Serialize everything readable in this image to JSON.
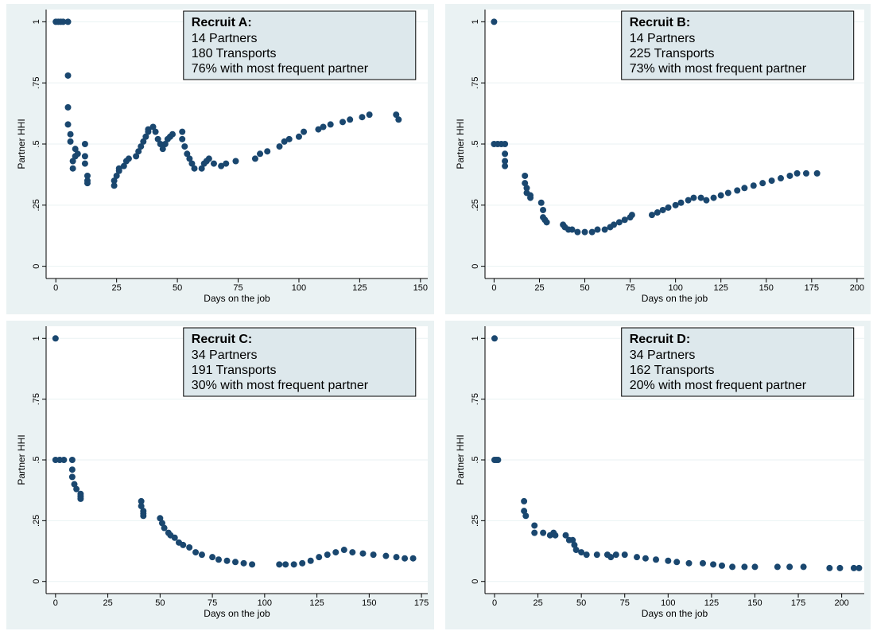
{
  "chart_data": [
    {
      "type": "scatter",
      "color": "#1a476f",
      "xlabel": "Days on the job",
      "ylabel": "Partner HHI",
      "grid": true,
      "annotation": {
        "title": "Recruit A:",
        "lines": [
          "14 Partners",
          "180 Transports",
          "76% with most frequent partner"
        ]
      },
      "xlim": [
        -4,
        153
      ],
      "ylim": [
        -0.05,
        1.05
      ],
      "xticks": [
        0,
        25,
        50,
        75,
        100,
        125,
        150
      ],
      "yticks": [
        0,
        {
          "value": 0.25,
          "label": ".25"
        },
        {
          "value": 0.5,
          "label": ".5"
        },
        {
          "value": 0.75,
          "label": ".75"
        },
        1
      ],
      "x": [
        0,
        1,
        2,
        3,
        5,
        5,
        5,
        5,
        6,
        6,
        7,
        7,
        8,
        8,
        9,
        12,
        12,
        12,
        13,
        13,
        13,
        24,
        24,
        25,
        26,
        26,
        28,
        29,
        30,
        33,
        34,
        35,
        36,
        37,
        38,
        38,
        40,
        41,
        42,
        43,
        44,
        45,
        46,
        47,
        48,
        52,
        52,
        53,
        54,
        55,
        56,
        57,
        60,
        61,
        62,
        63,
        65,
        68,
        70,
        74,
        82,
        84,
        87,
        92,
        94,
        96,
        100,
        102,
        108,
        110,
        113,
        118,
        121,
        126,
        129,
        140,
        141
      ],
      "values": [
        1,
        1,
        1,
        1,
        1,
        0.78,
        0.65,
        0.58,
        0.54,
        0.51,
        0.43,
        0.4,
        0.45,
        0.48,
        0.46,
        0.5,
        0.45,
        0.42,
        0.37,
        0.35,
        0.34,
        0.33,
        0.35,
        0.37,
        0.39,
        0.4,
        0.41,
        0.43,
        0.44,
        0.45,
        0.47,
        0.49,
        0.51,
        0.53,
        0.55,
        0.56,
        0.57,
        0.55,
        0.52,
        0.5,
        0.48,
        0.5,
        0.52,
        0.53,
        0.54,
        0.55,
        0.52,
        0.49,
        0.46,
        0.44,
        0.42,
        0.4,
        0.4,
        0.42,
        0.43,
        0.44,
        0.42,
        0.41,
        0.42,
        0.43,
        0.44,
        0.46,
        0.47,
        0.49,
        0.51,
        0.52,
        0.53,
        0.55,
        0.56,
        0.57,
        0.58,
        0.59,
        0.6,
        0.61,
        0.62,
        0.62,
        0.6
      ]
    },
    {
      "type": "scatter",
      "color": "#1a476f",
      "xlabel": "Days on the job",
      "ylabel": "Partner HHI",
      "grid": true,
      "annotation": {
        "title": "Recruit B:",
        "lines": [
          "14 Partners",
          "225 Transports",
          "73% with most frequent partner"
        ]
      },
      "xlim": [
        -5,
        204
      ],
      "ylim": [
        -0.05,
        1.05
      ],
      "xticks": [
        0,
        25,
        50,
        75,
        100,
        125,
        150,
        175,
        200
      ],
      "yticks": [
        0,
        {
          "value": 0.25,
          "label": ".25"
        },
        {
          "value": 0.5,
          "label": ".5"
        },
        {
          "value": 0.75,
          "label": ".75"
        },
        1
      ],
      "x": [
        0,
        0,
        2,
        4,
        6,
        6,
        6,
        6,
        17,
        17,
        18,
        18,
        20,
        20,
        26,
        27,
        27,
        28,
        29,
        38,
        39,
        41,
        43,
        46,
        50,
        54,
        57,
        61,
        64,
        66,
        69,
        72,
        75,
        76,
        87,
        90,
        93,
        96,
        100,
        103,
        107,
        110,
        114,
        117,
        121,
        125,
        129,
        134,
        138,
        143,
        148,
        153,
        158,
        163,
        167,
        172,
        178
      ],
      "values": [
        1,
        0.5,
        0.5,
        0.5,
        0.5,
        0.46,
        0.43,
        0.41,
        0.37,
        0.34,
        0.32,
        0.3,
        0.29,
        0.28,
        0.26,
        0.23,
        0.2,
        0.19,
        0.18,
        0.17,
        0.16,
        0.15,
        0.15,
        0.14,
        0.14,
        0.14,
        0.15,
        0.15,
        0.16,
        0.17,
        0.18,
        0.19,
        0.2,
        0.21,
        0.21,
        0.22,
        0.23,
        0.24,
        0.25,
        0.26,
        0.27,
        0.28,
        0.28,
        0.27,
        0.28,
        0.29,
        0.3,
        0.31,
        0.32,
        0.33,
        0.34,
        0.35,
        0.36,
        0.37,
        0.38,
        0.38,
        0.38
      ]
    },
    {
      "type": "scatter",
      "color": "#1a476f",
      "xlabel": "Days on the job",
      "ylabel": "Partner HHI",
      "grid": true,
      "annotation": {
        "title": "Recruit C:",
        "lines": [
          "34 Partners",
          "191 Transports",
          "30% with most frequent partner"
        ]
      },
      "xlim": [
        -4.5,
        178
      ],
      "ylim": [
        -0.05,
        1.05
      ],
      "xticks": [
        0,
        25,
        50,
        75,
        100,
        125,
        150,
        175
      ],
      "yticks": [
        0,
        {
          "value": 0.25,
          "label": ".25"
        },
        {
          "value": 0.5,
          "label": ".5"
        },
        {
          "value": 0.75,
          "label": ".75"
        },
        1
      ],
      "x": [
        0,
        0,
        2,
        4,
        8,
        8,
        8,
        9,
        10,
        12,
        12,
        12,
        41,
        41,
        42,
        42,
        42,
        50,
        51,
        52,
        54,
        55,
        57,
        59,
        61,
        64,
        67,
        70,
        75,
        78,
        82,
        86,
        90,
        94,
        107,
        110,
        114,
        118,
        122,
        126,
        130,
        134,
        138,
        142,
        147,
        152,
        158,
        163,
        167,
        171
      ],
      "values": [
        1,
        0.5,
        0.5,
        0.5,
        0.5,
        0.46,
        0.43,
        0.4,
        0.38,
        0.36,
        0.35,
        0.34,
        0.33,
        0.31,
        0.29,
        0.28,
        0.27,
        0.26,
        0.24,
        0.22,
        0.2,
        0.19,
        0.18,
        0.16,
        0.15,
        0.14,
        0.12,
        0.11,
        0.1,
        0.09,
        0.085,
        0.08,
        0.075,
        0.07,
        0.07,
        0.07,
        0.07,
        0.075,
        0.085,
        0.1,
        0.11,
        0.12,
        0.13,
        0.12,
        0.115,
        0.11,
        0.105,
        0.1,
        0.095,
        0.095
      ]
    },
    {
      "type": "scatter",
      "color": "#1a476f",
      "xlabel": "Days on the job",
      "ylabel": "Partner HHI",
      "grid": true,
      "annotation": {
        "title": "Recruit D:",
        "lines": [
          "34 Partners",
          "162 Transports",
          "20% with most frequent partner"
        ]
      },
      "xlim": [
        -5.5,
        213
      ],
      "ylim": [
        -0.05,
        1.05
      ],
      "xticks": [
        0,
        25,
        50,
        75,
        100,
        125,
        150,
        175,
        200
      ],
      "yticks": [
        0,
        {
          "value": 0.25,
          "label": ".25"
        },
        {
          "value": 0.5,
          "label": ".5"
        },
        {
          "value": 0.75,
          "label": ".75"
        },
        1
      ],
      "x": [
        0,
        0,
        1,
        2,
        17,
        17,
        18,
        23,
        23,
        28,
        32,
        34,
        35,
        41,
        43,
        45,
        46,
        47,
        50,
        53,
        59,
        65,
        67,
        70,
        75,
        82,
        87,
        93,
        100,
        105,
        112,
        120,
        126,
        131,
        137,
        144,
        150,
        163,
        170,
        178,
        193,
        199,
        207,
        210
      ],
      "values": [
        1,
        0.5,
        0.5,
        0.5,
        0.33,
        0.29,
        0.27,
        0.23,
        0.2,
        0.2,
        0.19,
        0.2,
        0.19,
        0.19,
        0.17,
        0.17,
        0.15,
        0.13,
        0.12,
        0.11,
        0.11,
        0.11,
        0.1,
        0.11,
        0.11,
        0.1,
        0.095,
        0.09,
        0.085,
        0.08,
        0.075,
        0.075,
        0.07,
        0.065,
        0.06,
        0.06,
        0.06,
        0.06,
        0.06,
        0.06,
        0.055,
        0.055,
        0.055,
        0.055
      ]
    }
  ]
}
